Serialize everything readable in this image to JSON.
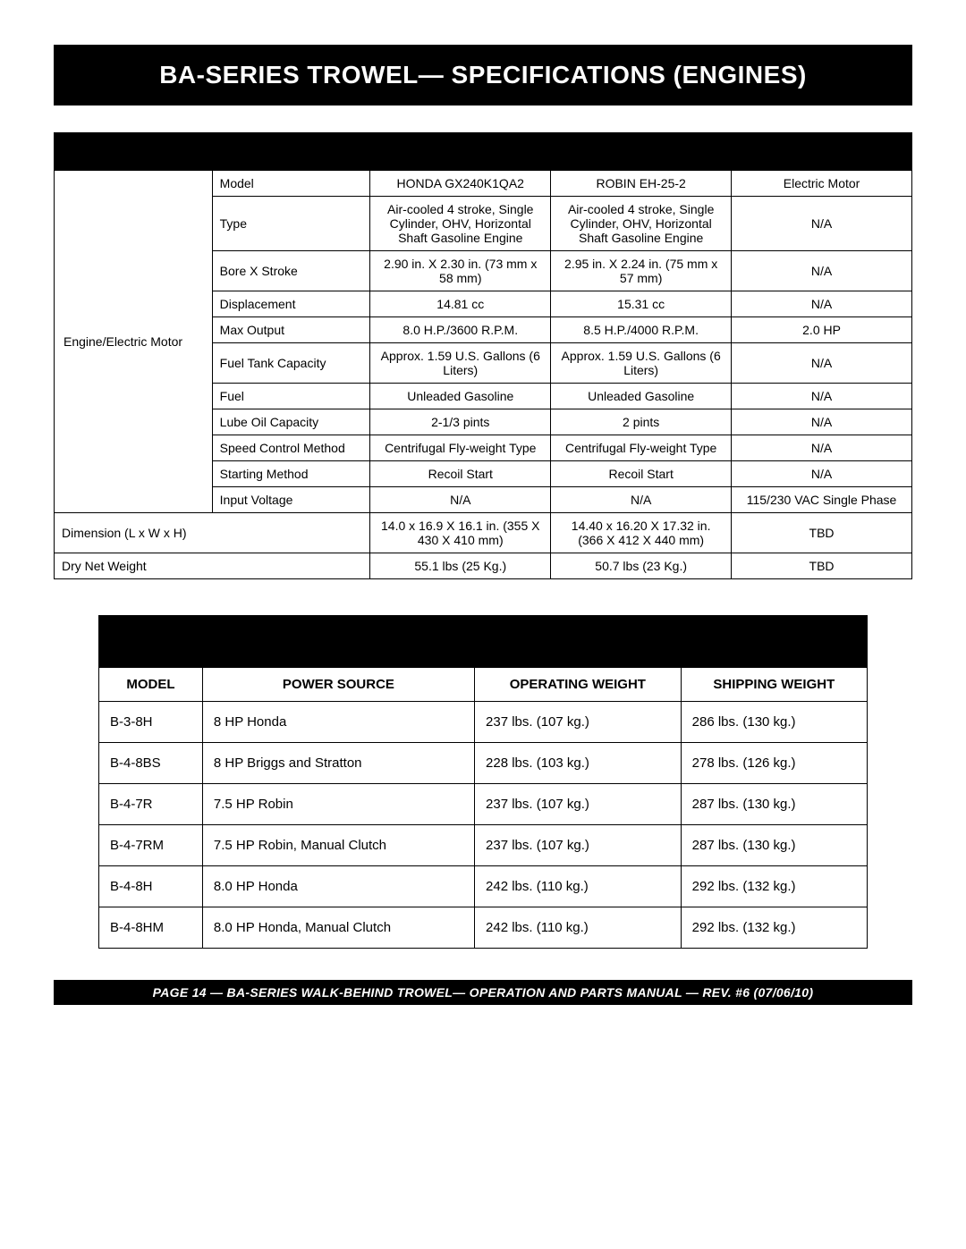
{
  "banner_title": "BA-SERIES TROWEL— SPECIFICATIONS (ENGINES)",
  "spec_table": {
    "row_group_label": "Engine/Electric Motor",
    "rows": [
      {
        "label": "Model",
        "v1": "HONDA GX240K1QA2",
        "v2": "ROBIN EH-25-2",
        "v3": "Electric Motor"
      },
      {
        "label": "Type",
        "v1": "Air-cooled 4 stroke, Single Cylinder, OHV, Horizontal Shaft Gasoline Engine",
        "v2": "Air-cooled 4 stroke, Single Cylinder, OHV, Horizontal Shaft Gasoline Engine",
        "v3": "N/A"
      },
      {
        "label": "Bore X Stroke",
        "v1": "2.90 in. X 2.30 in. (73 mm x 58 mm)",
        "v2": "2.95 in. X 2.24 in. (75 mm x 57 mm)",
        "v3": "N/A"
      },
      {
        "label": "Displacement",
        "v1": "14.81 cc",
        "v2": "15.31 cc",
        "v3": "N/A"
      },
      {
        "label": "Max Output",
        "v1": "8.0 H.P./3600 R.P.M.",
        "v2": "8.5 H.P./4000 R.P.M.",
        "v3": "2.0 HP"
      },
      {
        "label": "Fuel Tank Capacity",
        "v1": "Approx. 1.59 U.S. Gallons (6 Liters)",
        "v2": "Approx. 1.59 U.S. Gallons (6 Liters)",
        "v3": "N/A"
      },
      {
        "label": "Fuel",
        "v1": "Unleaded Gasoline",
        "v2": "Unleaded Gasoline",
        "v3": "N/A"
      },
      {
        "label": "Lube Oil Capacity",
        "v1": "2-1/3 pints",
        "v2": "2 pints",
        "v3": "N/A"
      },
      {
        "label": "Speed Control Method",
        "v1": "Centrifugal Fly-weight Type",
        "v2": "Centrifugal Fly-weight Type",
        "v3": "N/A"
      },
      {
        "label": "Starting Method",
        "v1": "Recoil Start",
        "v2": "Recoil Start",
        "v3": "N/A"
      },
      {
        "label": "Input Voltage",
        "v1": "N/A",
        "v2": "N/A",
        "v3": "115/230 VAC Single Phase"
      }
    ],
    "bottom_rows": [
      {
        "label": "Dimension (L x W x H)",
        "v1": "14.0 x 16.9 X 16.1 in. (355 X 430 X 410 mm)",
        "v2": "14.40 x 16.20 X 17.32 in. (366 X 412 X 440 mm)",
        "v3": "TBD"
      },
      {
        "label": "Dry Net Weight",
        "v1": "55.1 lbs  (25 Kg.)",
        "v2": "50.7 lbs  (23 Kg.)",
        "v3": "TBD"
      }
    ]
  },
  "weight_table": {
    "headers": [
      "MODEL",
      "POWER SOURCE",
      "OPERATING WEIGHT",
      "SHIPPING WEIGHT"
    ],
    "rows": [
      {
        "model": "B-3-8H",
        "power": "8 HP Honda",
        "op": "237 lbs. (107 kg.)",
        "ship": "286 lbs. (130 kg.)"
      },
      {
        "model": "B-4-8BS",
        "power": "8 HP Briggs and Stratton",
        "op": "228 lbs. (103 kg.)",
        "ship": "278 lbs. (126 kg.)"
      },
      {
        "model": "B-4-7R",
        "power": "7.5 HP Robin",
        "op": "237 lbs. (107 kg.)",
        "ship": "287 lbs. (130 kg.)"
      },
      {
        "model": "B-4-7RM",
        "power": "7.5 HP Robin, Manual Clutch",
        "op": "237 lbs. (107 kg.)",
        "ship": "287 lbs. (130 kg.)"
      },
      {
        "model": "B-4-8H",
        "power": "8.0 HP Honda",
        "op": "242 lbs. (110 kg.)",
        "ship": "292 lbs. (132 kg.)"
      },
      {
        "model": "B-4-8HM",
        "power": "8.0 HP Honda, Manual Clutch",
        "op": "242 lbs. (110 kg.)",
        "ship": "292 lbs. (132 kg.)"
      }
    ]
  },
  "footer": "PAGE 14 — BA-SERIES  WALK-BEHIND TROWEL— OPERATION AND PARTS MANUAL — REV. #6 (07/06/10)"
}
